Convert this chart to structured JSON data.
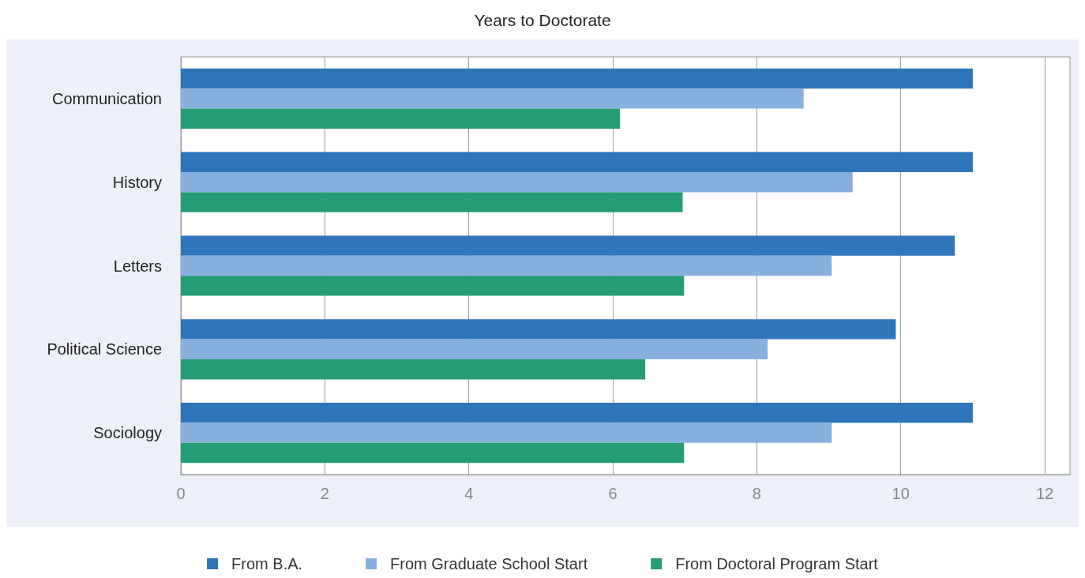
{
  "chart_data": {
    "type": "bar",
    "orientation": "horizontal",
    "title": "Years to Doctorate",
    "categories": [
      "Communication",
      "History",
      "Letters",
      "Political Science",
      "Sociology"
    ],
    "series": [
      {
        "name": "From B.A.",
        "color": "#2e75b9",
        "values": [
          11.0,
          11.0,
          10.75,
          9.93,
          11.0
        ]
      },
      {
        "name": "From Graduate School Start",
        "color": "#88b0df",
        "values": [
          8.65,
          9.33,
          9.04,
          8.15,
          9.04
        ]
      },
      {
        "name": "From Doctoral Program Start",
        "color": "#259c76",
        "values": [
          6.1,
          6.97,
          6.99,
          6.45,
          6.99
        ]
      }
    ],
    "xlim": [
      0,
      12.35
    ],
    "xticks": [
      0,
      2,
      4,
      6,
      8,
      10,
      12
    ],
    "grid": "x",
    "legend": "bottom"
  }
}
